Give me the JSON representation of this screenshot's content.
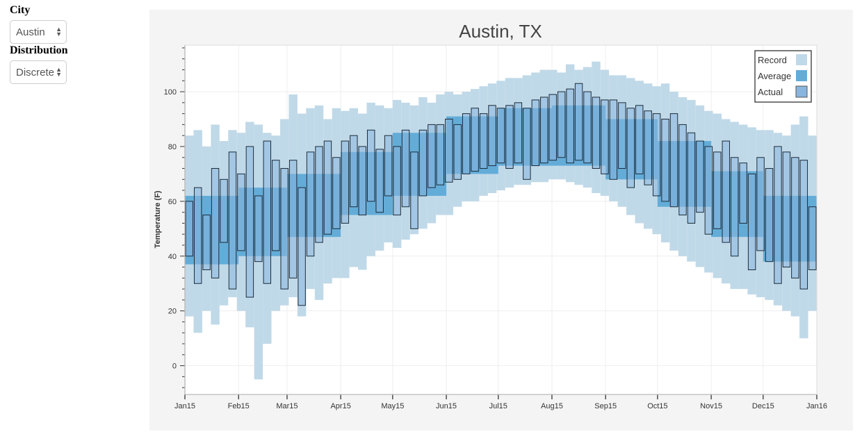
{
  "controls": {
    "city_label": "City",
    "city_value": "Austin",
    "distribution_label": "Distribution",
    "distribution_value": "Discrete"
  },
  "chart_data": {
    "type": "bar",
    "title": "Austin, TX",
    "xlabel": "",
    "ylabel": "Temperature (F)",
    "x_ticks": [
      "Jan15",
      "Feb15",
      "Mar15",
      "Apr15",
      "May15",
      "Jun15",
      "Jul15",
      "Aug15",
      "Sep15",
      "Oct15",
      "Nov15",
      "Dec15",
      "Jan16"
    ],
    "y_ticks": [
      0,
      20,
      40,
      60,
      80,
      100
    ],
    "ylim": [
      -10.5,
      117
    ],
    "xlim": [
      "2015-01-01",
      "2016-01-01"
    ],
    "grid": true,
    "legend_position": "top-right",
    "legend": [
      {
        "name": "Record",
        "color": "#c0d9e8"
      },
      {
        "name": "Average",
        "color": "#63acd8"
      },
      {
        "name": "Actual",
        "color": "#89b6de"
      }
    ],
    "record": {
      "x": [
        "2015-01-01",
        "2015-01-06",
        "2015-01-11",
        "2015-01-16",
        "2015-01-21",
        "2015-01-26",
        "2015-01-31",
        "2015-02-05",
        "2015-02-10",
        "2015-02-15",
        "2015-02-20",
        "2015-02-25",
        "2015-03-02",
        "2015-03-07",
        "2015-03-12",
        "2015-03-17",
        "2015-03-22",
        "2015-03-27",
        "2015-04-01",
        "2015-04-06",
        "2015-04-11",
        "2015-04-16",
        "2015-04-21",
        "2015-04-26",
        "2015-05-01",
        "2015-05-06",
        "2015-05-11",
        "2015-05-16",
        "2015-05-21",
        "2015-05-26",
        "2015-05-31",
        "2015-06-05",
        "2015-06-10",
        "2015-06-15",
        "2015-06-20",
        "2015-06-25",
        "2015-06-30",
        "2015-07-05",
        "2015-07-10",
        "2015-07-15",
        "2015-07-20",
        "2015-07-25",
        "2015-07-30",
        "2015-08-04",
        "2015-08-09",
        "2015-08-14",
        "2015-08-19",
        "2015-08-24",
        "2015-08-29",
        "2015-09-03",
        "2015-09-08",
        "2015-09-13",
        "2015-09-18",
        "2015-09-23",
        "2015-09-28",
        "2015-10-03",
        "2015-10-08",
        "2015-10-13",
        "2015-10-18",
        "2015-10-23",
        "2015-10-28",
        "2015-11-02",
        "2015-11-07",
        "2015-11-12",
        "2015-11-17",
        "2015-11-22",
        "2015-11-27",
        "2015-12-02",
        "2015-12-07",
        "2015-12-12",
        "2015-12-17",
        "2015-12-22",
        "2015-12-27"
      ],
      "low": [
        18,
        12,
        20,
        15,
        22,
        25,
        20,
        14,
        -5,
        8,
        20,
        22,
        25,
        18,
        28,
        24,
        30,
        32,
        32,
        36,
        35,
        40,
        42,
        45,
        43,
        46,
        48,
        50,
        52,
        55,
        55,
        58,
        60,
        60,
        62,
        63,
        64,
        65,
        66,
        66,
        67,
        67,
        68,
        68,
        67,
        66,
        65,
        63,
        62,
        60,
        58,
        55,
        52,
        50,
        48,
        45,
        42,
        40,
        38,
        36,
        34,
        32,
        30,
        28,
        28,
        26,
        25,
        24,
        22,
        20,
        18,
        10,
        20
      ],
      "high": [
        84,
        86,
        80,
        88,
        82,
        86,
        85,
        89,
        88,
        85,
        84,
        90,
        99,
        92,
        94,
        95,
        90,
        94,
        93,
        94,
        92,
        96,
        95,
        94,
        97,
        96,
        95,
        98,
        96,
        99,
        100,
        99,
        100,
        101,
        102,
        103,
        104,
        105,
        105,
        106,
        107,
        108,
        108,
        107,
        110,
        108,
        109,
        111,
        108,
        106,
        106,
        105,
        104,
        103,
        102,
        103,
        100,
        98,
        97,
        95,
        93,
        92,
        90,
        89,
        88,
        87,
        86,
        86,
        85,
        84,
        88,
        91,
        84
      ]
    },
    "average": {
      "months": [
        "Jan",
        "Feb",
        "Mar",
        "Apr",
        "May",
        "Jun",
        "Jul",
        "Aug",
        "Sep",
        "Oct",
        "Nov",
        "Dec"
      ],
      "low": [
        37,
        40,
        47,
        55,
        62,
        70,
        73,
        73,
        68,
        58,
        47,
        38
      ],
      "high": [
        62,
        65,
        70,
        78,
        85,
        91,
        94,
        95,
        90,
        82,
        71,
        62
      ]
    },
    "actual": {
      "low": [
        40,
        30,
        35,
        32,
        45,
        28,
        42,
        25,
        38,
        30,
        42,
        28,
        32,
        22,
        40,
        45,
        48,
        50,
        52,
        58,
        55,
        60,
        56,
        62,
        55,
        58,
        50,
        62,
        65,
        66,
        67,
        68,
        70,
        71,
        72,
        73,
        74,
        72,
        74,
        68,
        73,
        74,
        75,
        76,
        74,
        75,
        74,
        72,
        70,
        68,
        72,
        65,
        70,
        66,
        62,
        60,
        58,
        55,
        52,
        56,
        48,
        50,
        45,
        40,
        52,
        35,
        42,
        38,
        30,
        36,
        32,
        28,
        35
      ],
      "high": [
        60,
        65,
        55,
        72,
        68,
        78,
        70,
        80,
        62,
        82,
        75,
        72,
        75,
        65,
        78,
        80,
        82,
        76,
        82,
        84,
        80,
        86,
        79,
        84,
        80,
        86,
        78,
        86,
        88,
        88,
        90,
        88,
        92,
        94,
        92,
        95,
        94,
        95,
        96,
        94,
        97,
        98,
        99,
        100,
        101,
        103,
        100,
        98,
        97,
        97,
        96,
        94,
        95,
        93,
        92,
        90,
        92,
        88,
        85,
        82,
        80,
        78,
        82,
        76,
        74,
        70,
        76,
        72,
        80,
        78,
        76,
        75,
        58
      ]
    }
  }
}
